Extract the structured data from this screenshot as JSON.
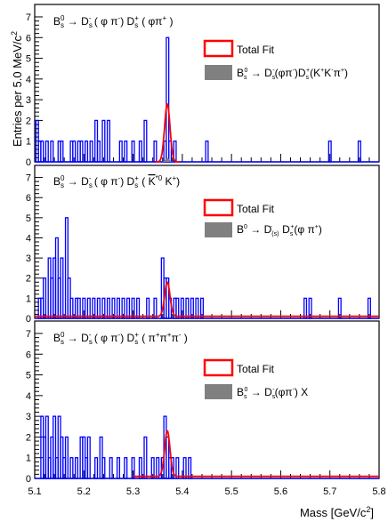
{
  "chart_data": [
    {
      "type": "histogram",
      "panel": "top",
      "label": "B_s^0 → D_s^- ( φ π^- ) D_s^+ ( φπ^+ )",
      "ylim": [
        0,
        7.6
      ],
      "y_ticks": [
        "0",
        "1",
        "2",
        "3",
        "4",
        "5",
        "6",
        "7"
      ],
      "bin_width": 0.005,
      "data_bins": {
        "5.105": 2,
        "5.11": 1,
        "5.115": 1,
        "5.125": 1,
        "5.135": 1,
        "5.15": 1,
        "5.155": 1,
        "5.175": 1,
        "5.18": 1,
        "5.19": 1,
        "5.195": 1,
        "5.205": 1,
        "5.215": 1,
        "5.225": 2,
        "5.23": 1,
        "5.24": 2,
        "5.25": 2,
        "5.275": 1,
        "5.285": 1,
        "5.3": 1,
        "5.315": 1,
        "5.325": 2,
        "5.345": 1,
        "5.365": 1,
        "5.37": 6,
        "5.375": 1,
        "5.385": 1,
        "5.45": 1,
        "5.7": 1,
        "5.76": 1
      },
      "fit_peak": 2.8,
      "background_peak": 0.2,
      "legend": [
        "Total Fit",
        "B_s^0 → D_s^-(φπ^-)D_s^+(K^+K^-π^+)"
      ]
    },
    {
      "type": "histogram",
      "panel": "middle",
      "label": "B_s^0 → D_s^- ( φ π^- ) D_s^+ ( K^*0 K^+ )",
      "ylim": [
        0,
        7.6
      ],
      "y_ticks": [
        "0",
        "1",
        "2",
        "3",
        "4",
        "5",
        "6",
        "7"
      ],
      "bin_width": 0.005,
      "data_bins": {
        "5.11": 1,
        "5.115": 1,
        "5.12": 2,
        "5.13": 3,
        "5.135": 2,
        "5.14": 3,
        "5.145": 4,
        "5.15": 2,
        "5.155": 3,
        "5.165": 5,
        "5.17": 2,
        "5.175": 1,
        "5.185": 1,
        "5.19": 1,
        "5.2": 1,
        "5.21": 1,
        "5.22": 1,
        "5.23": 1,
        "5.24": 1,
        "5.25": 1,
        "5.26": 1,
        "5.27": 1,
        "5.28": 1,
        "5.29": 1,
        "5.3": 1,
        "5.31": 1,
        "5.33": 1,
        "5.345": 1,
        "5.36": 3,
        "5.365": 2,
        "5.37": 2,
        "5.375": 1,
        "5.385": 1,
        "5.39": 1,
        "5.4": 1,
        "5.41": 1,
        "5.42": 1,
        "5.43": 1,
        "5.44": 1,
        "5.65": 1,
        "5.66": 1,
        "5.72": 1,
        "5.78": 1
      },
      "fit_peak": 1.7,
      "background_level": 0.1,
      "legend": [
        "Total Fit",
        "B^0 → D_(s)^- D_s^+(φ π^+)"
      ]
    },
    {
      "type": "histogram",
      "panel": "bottom",
      "label": "B_s^0 → D_s^- ( φ π^- ) D_s^+ ( π^+π^+π^- )",
      "ylim": [
        0,
        7.6
      ],
      "y_ticks": [
        "0",
        "1",
        "2",
        "3",
        "4",
        "5",
        "6",
        "7"
      ],
      "xlim": [
        5.1,
        5.8
      ],
      "x_ticks": [
        "5.1",
        "5.2",
        "5.3",
        "5.4",
        "5.5",
        "5.6",
        "5.7",
        "5.8"
      ],
      "xlabel": "Mass [GeV/c^2]",
      "bin_width": 0.005,
      "data_bins": {
        "5.115": 3,
        "5.12": 2,
        "5.125": 3,
        "5.13": 1,
        "5.135": 2,
        "5.14": 3,
        "5.145": 1,
        "5.15": 3,
        "5.155": 2,
        "5.16": 1,
        "5.165": 2,
        "5.175": 1,
        "5.185": 1,
        "5.195": 2,
        "5.2": 2,
        "5.205": 1,
        "5.21": 2,
        "5.225": 1,
        "5.235": 2,
        "5.24": 1,
        "5.255": 1,
        "5.27": 1,
        "5.285": 1,
        "5.3": 1,
        "5.315": 1,
        "5.325": 2,
        "5.34": 1,
        "5.35": 1,
        "5.36": 1,
        "5.365": 3,
        "5.37": 2,
        "5.375": 1,
        "5.38": 1,
        "5.39": 1,
        "5.405": 1,
        "5.415": 1
      },
      "fit_peak": 2.2,
      "fit_start": 5.3,
      "background_level": 0.1,
      "legend": [
        "Total Fit",
        "B_s^0 → D_s^-(φπ^-) X"
      ]
    }
  ],
  "ylabel": "Entries per 5.0 MeV/c^2",
  "colors": {
    "data": "#0000ff",
    "fit": "#ff0000",
    "component": "#808080"
  }
}
